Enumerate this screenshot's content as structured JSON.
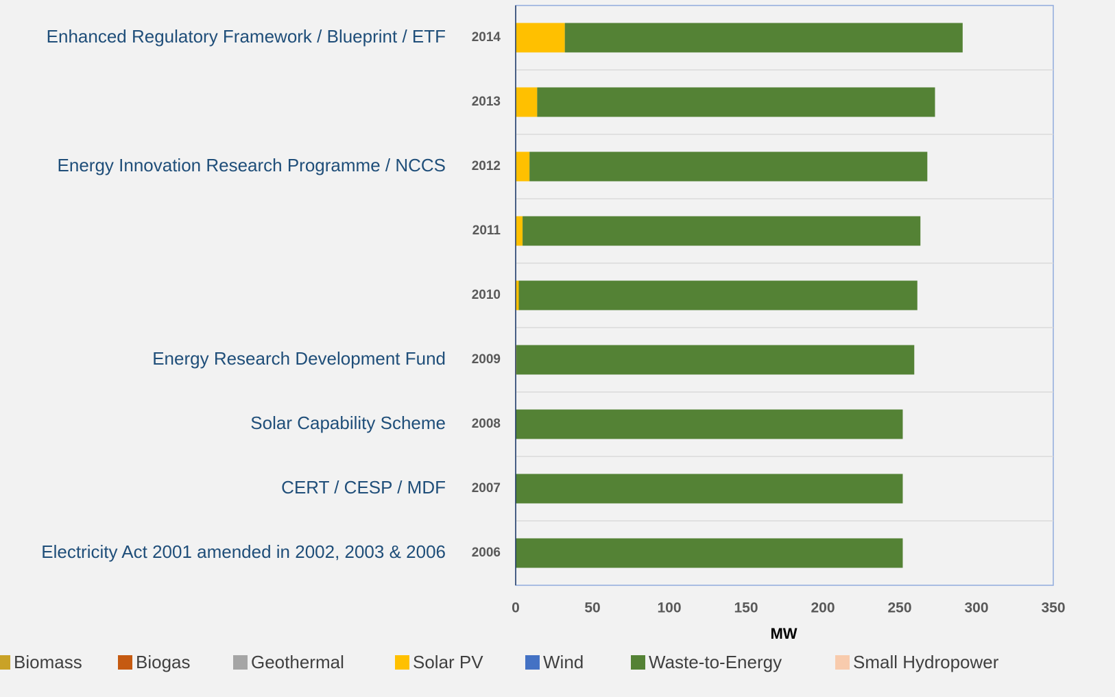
{
  "chart_data": {
    "type": "stacked_barh",
    "categories": [
      "2014",
      "2013",
      "2012",
      "2011",
      "2010",
      "2009",
      "2008",
      "2007",
      "2006"
    ],
    "series": [
      {
        "name": "Biomass",
        "color": "#c9a227",
        "values": [
          0,
          0,
          0,
          0,
          0,
          0,
          0,
          0,
          0
        ]
      },
      {
        "name": "Biogas",
        "color": "#c55a11",
        "values": [
          0,
          0,
          0,
          0,
          0,
          0,
          0,
          0,
          0
        ]
      },
      {
        "name": "Geothermal",
        "color": "#a5a5a5",
        "values": [
          0,
          0,
          0,
          0,
          0,
          0,
          0,
          0,
          0
        ]
      },
      {
        "name": "Solar PV",
        "color": "#ffc000",
        "values": [
          32,
          14,
          9,
          4.5,
          2,
          0.5,
          0,
          0,
          0
        ]
      },
      {
        "name": "Wind",
        "color": "#4472c4",
        "values": [
          0,
          0,
          0,
          0,
          0,
          0,
          0,
          0,
          0
        ]
      },
      {
        "name": "Waste-to-Energy",
        "color": "#548235",
        "values": [
          259,
          259,
          259,
          259,
          259.5,
          259,
          252,
          252,
          252
        ]
      },
      {
        "name": "Small Hydropower",
        "color": "#f8cbad",
        "values": [
          0,
          0,
          0,
          0,
          0,
          0,
          0,
          0,
          0
        ]
      }
    ],
    "xlabel": "MW",
    "xlim": [
      0,
      350
    ],
    "xticks": [
      0,
      50,
      100,
      150,
      200,
      250,
      300,
      350
    ],
    "legend": "bottom",
    "annotations": [
      {
        "text": "Enhanced Regulatory Framework / Blueprint / ETF",
        "category": "2014"
      },
      {
        "text": "Energy Innovation Research Programme / NCCS",
        "category": "2012"
      },
      {
        "text": "Energy Research Development Fund",
        "category": "2009"
      },
      {
        "text": "Solar Capability Scheme",
        "category": "2008"
      },
      {
        "text": "CERT / CESP / MDF",
        "category": "2007"
      },
      {
        "text": "Electricity Act 2001 amended in 2002, 2003 & 2006",
        "category": "2006"
      }
    ]
  }
}
